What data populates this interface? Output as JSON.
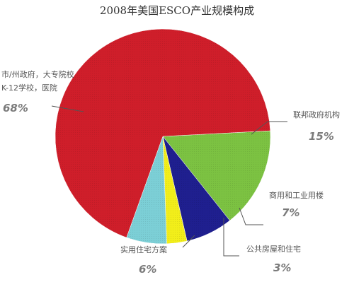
{
  "chart_data": {
    "type": "pie",
    "title": "2008年美国ESCO产业规模构成",
    "slices": [
      {
        "label": "联邦政府机构",
        "display": "15%",
        "value": 15,
        "color": "#7cc242"
      },
      {
        "label": "商用和工业用楼",
        "display": "7%",
        "value": 7,
        "color": "#1f1f8f"
      },
      {
        "label": "公共房屋和住宅",
        "display": "3%",
        "value": 3,
        "color": "#f2ee1a"
      },
      {
        "label": "实用住宅方案",
        "display": "6%",
        "value": 6,
        "color": "#7ccfd6"
      },
      {
        "label_lines": [
          "市/州政府，大专院校",
          "K-12学校，医院"
        ],
        "display": "68%",
        "value": 68,
        "color": "#cf1e2a"
      }
    ]
  }
}
